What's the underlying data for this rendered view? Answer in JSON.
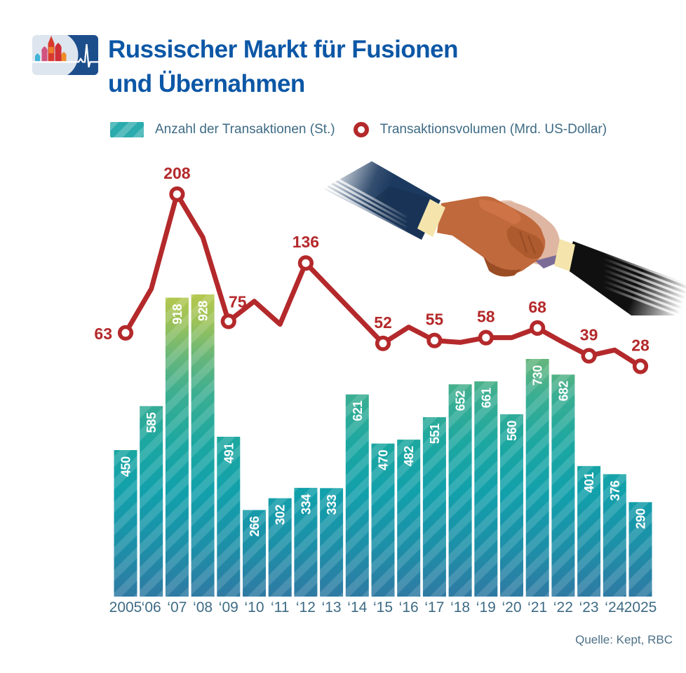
{
  "title": {
    "line1": "Russischer Markt für Fusionen",
    "line2": "und Übernahmen"
  },
  "legend": {
    "bars": "Anzahl der Transaktionen (St.)",
    "line": "Transaktionsvolumen (Mrd. US-Dollar)"
  },
  "source": "Quelle: Kept, RBC",
  "chart_data": {
    "type": "bar",
    "combo": "bar + line",
    "title": "Russischer Markt für Fusionen und Übernahmen",
    "categories": [
      "2005",
      "‘06",
      "‘07",
      "‘08",
      "‘09",
      "‘10",
      "‘11",
      "‘12",
      "‘13",
      "‘14",
      "‘15",
      "‘16",
      "‘17",
      "‘18",
      "‘19",
      "‘20",
      "‘21",
      "‘22",
      "‘23",
      "‘24",
      "2025"
    ],
    "series": [
      {
        "name": "Anzahl der Transaktionen (St.)",
        "type": "bar",
        "values": [
          450,
          585,
          918,
          928,
          491,
          266,
          302,
          334,
          333,
          621,
          470,
          482,
          551,
          652,
          661,
          560,
          730,
          682,
          401,
          376,
          290
        ]
      },
      {
        "name": "Transaktionsvolumen (Mrd. US-Dollar)",
        "type": "line",
        "values": [
          63,
          109,
          208,
          163,
          75,
          96,
          72,
          136,
          108,
          80,
          52,
          69,
          55,
          53,
          58,
          58,
          68,
          53,
          39,
          45,
          28
        ],
        "labeled_indices": [
          0,
          2,
          4,
          7,
          10,
          12,
          14,
          16,
          18,
          20
        ],
        "labeled_values": [
          63,
          208,
          75,
          136,
          52,
          55,
          58,
          68,
          39,
          28
        ],
        "note": "values at unlabeled indices are estimated from the drawn line"
      }
    ],
    "grid": false,
    "y_axis_shown": false,
    "bar_value_labels_rotated": true,
    "colors": {
      "line": "#b4292b",
      "bar_gradient": [
        "#b7c94e",
        "#9cc258",
        "#66b67b",
        "#3bae92",
        "#1ca7a1",
        "#12a0ab",
        "#1d8fa8",
        "#2f7aa3"
      ],
      "axis_text": "#3e6b85",
      "bar_label_text": "#ffffff"
    }
  }
}
